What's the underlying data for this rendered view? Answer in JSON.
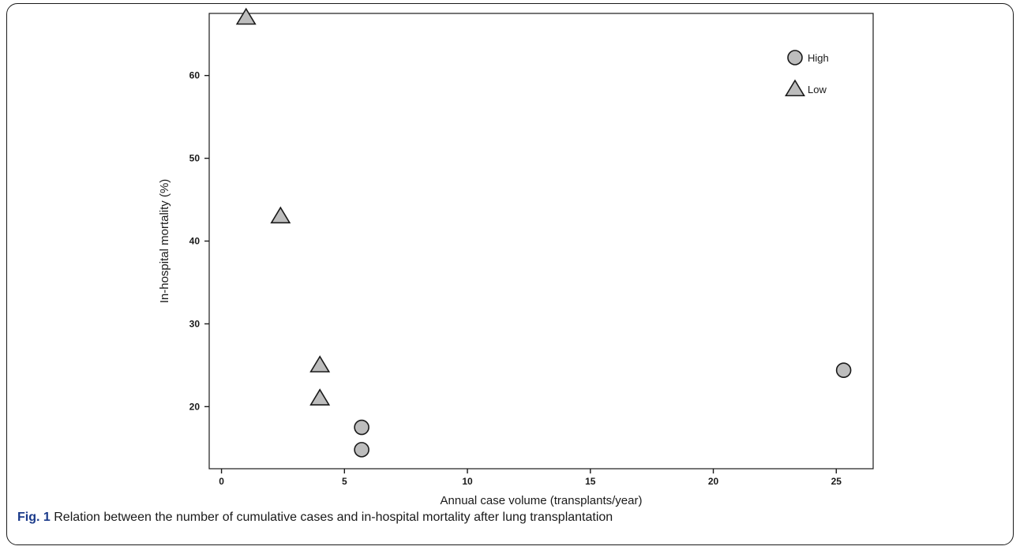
{
  "figure": {
    "caption_label": "Fig. 1",
    "caption_text": "Relation between the number of cumulative cases and in-hospital mortality after lung transplantation"
  },
  "colors": {
    "marker_fill": "#bdbdbd",
    "marker_stroke": "#1a1a1a",
    "axis": "#1a1a1a",
    "caption_label": "#1a3a8a"
  },
  "chart_data": {
    "type": "scatter",
    "title": "",
    "xlabel": "Annual case volume (transplants/year)",
    "ylabel": "In-hospital mortality (%)",
    "xlim": [
      -0.5,
      26.5
    ],
    "ylim": [
      12.5,
      67.5
    ],
    "xticks": [
      0,
      5,
      10,
      15,
      20,
      25
    ],
    "yticks": [
      20,
      30,
      40,
      50,
      60
    ],
    "grid": false,
    "legend_position": "top-right",
    "series": [
      {
        "name": "High",
        "marker": "circle",
        "x": [
          5.7,
          5.7,
          25.3
        ],
        "y": [
          17.5,
          14.8,
          24.4
        ]
      },
      {
        "name": "Low",
        "marker": "triangle",
        "x": [
          1.0,
          2.4,
          4.0,
          4.0
        ],
        "y": [
          67.0,
          43.0,
          25.0,
          21.0
        ]
      }
    ]
  }
}
